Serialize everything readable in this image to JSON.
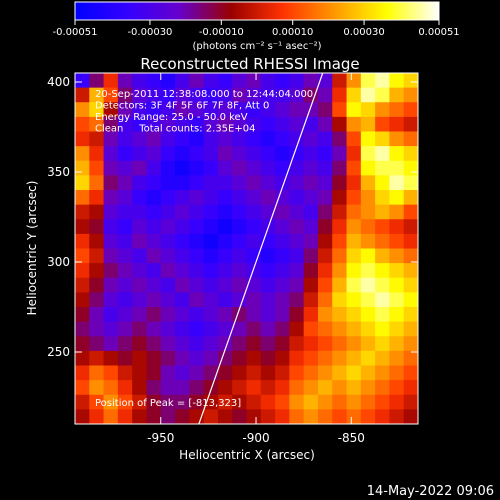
{
  "chart_data": {
    "type": "heatmap",
    "title": "Reconstructed RHESSI Image",
    "colorbar": {
      "tick_labels": [
        "-0.00051",
        "-0.00030",
        "-0.00010",
        "0.00010",
        "0.00030",
        "0.00051"
      ],
      "tick_values": [
        -0.00051,
        -0.0003,
        -0.0001,
        0.0001,
        0.0003,
        0.00051
      ],
      "range": [
        -0.00051,
        0.00051
      ],
      "unit_label": "(photons cm⁻² s⁻¹ asec⁻²)",
      "colormap": [
        "#0000ff",
        "#3300ff",
        "#6600cc",
        "#990000",
        "#ff3300",
        "#ff9900",
        "#ffff00",
        "#ffffff"
      ]
    },
    "xlabel": "Heliocentric X (arcsec)",
    "ylabel": "Heliocentric Y (arcsec)",
    "x_ticks": [
      -950,
      -900,
      -850
    ],
    "y_ticks": [
      250,
      300,
      350,
      400
    ],
    "xlim": [
      -995,
      -815
    ],
    "ylim": [
      210,
      405
    ],
    "annotations": [
      "20-Sep-2011 12:38:08.000 to 12:44:04.000",
      "Detectors: 3F 4F 5F 6F 7F 8F, Att 0",
      "Energy Range: 25.0 - 50.0 keV",
      "Clean     Total counts: 2.35E+04"
    ],
    "peak_label": "Position of Peak = [-813,323]",
    "limb_line": [
      [
        -930,
        210
      ],
      [
        -865,
        405
      ]
    ],
    "field_levels": {
      "rows": 24,
      "cols": 24,
      "values": [
        [
          0.15,
          0.35,
          0.55,
          0.3,
          0.2,
          0.15,
          0.1,
          0.2,
          0.3,
          0.2,
          0.15,
          0.25,
          0.3,
          0.2,
          0.15,
          0.2,
          0.3,
          0.25,
          0.5,
          0.7,
          0.9,
          0.95,
          0.85,
          0.8
        ],
        [
          0.5,
          0.75,
          0.6,
          0.35,
          0.25,
          0.2,
          0.15,
          0.25,
          0.2,
          0.15,
          0.2,
          0.3,
          0.25,
          0.2,
          0.2,
          0.25,
          0.35,
          0.3,
          0.55,
          0.8,
          0.95,
          0.9,
          0.75,
          0.7
        ],
        [
          0.7,
          0.8,
          0.45,
          0.3,
          0.2,
          0.15,
          0.2,
          0.3,
          0.25,
          0.2,
          0.25,
          0.2,
          0.15,
          0.2,
          0.25,
          0.3,
          0.3,
          0.35,
          0.6,
          0.85,
          0.8,
          0.7,
          0.65,
          0.6
        ],
        [
          0.6,
          0.65,
          0.35,
          0.2,
          0.15,
          0.2,
          0.25,
          0.2,
          0.15,
          0.25,
          0.3,
          0.25,
          0.2,
          0.15,
          0.2,
          0.25,
          0.2,
          0.3,
          0.45,
          0.7,
          0.75,
          0.6,
          0.55,
          0.5
        ],
        [
          0.55,
          0.5,
          0.3,
          0.2,
          0.25,
          0.3,
          0.2,
          0.15,
          0.1,
          0.2,
          0.25,
          0.2,
          0.15,
          0.1,
          0.15,
          0.2,
          0.25,
          0.2,
          0.35,
          0.6,
          0.85,
          0.8,
          0.7,
          0.65
        ],
        [
          0.7,
          0.55,
          0.25,
          0.15,
          0.2,
          0.25,
          0.15,
          0.1,
          0.15,
          0.2,
          0.3,
          0.25,
          0.2,
          0.15,
          0.1,
          0.15,
          0.2,
          0.15,
          0.3,
          0.55,
          0.9,
          0.95,
          0.85,
          0.8
        ],
        [
          0.75,
          0.6,
          0.3,
          0.25,
          0.3,
          0.2,
          0.1,
          0.05,
          0.1,
          0.15,
          0.25,
          0.3,
          0.25,
          0.2,
          0.15,
          0.2,
          0.25,
          0.2,
          0.35,
          0.6,
          0.85,
          0.9,
          0.9,
          0.85
        ],
        [
          0.8,
          0.65,
          0.35,
          0.3,
          0.2,
          0.15,
          0.1,
          0.1,
          0.15,
          0.2,
          0.2,
          0.25,
          0.3,
          0.25,
          0.2,
          0.25,
          0.3,
          0.25,
          0.4,
          0.55,
          0.75,
          0.85,
          0.95,
          0.9
        ],
        [
          0.65,
          0.55,
          0.3,
          0.25,
          0.15,
          0.1,
          0.15,
          0.2,
          0.25,
          0.2,
          0.15,
          0.2,
          0.25,
          0.3,
          0.25,
          0.2,
          0.25,
          0.3,
          0.45,
          0.6,
          0.7,
          0.8,
          0.85,
          0.75
        ],
        [
          0.5,
          0.45,
          0.25,
          0.2,
          0.2,
          0.15,
          0.2,
          0.25,
          0.2,
          0.15,
          0.1,
          0.15,
          0.2,
          0.25,
          0.3,
          0.25,
          0.2,
          0.35,
          0.5,
          0.65,
          0.7,
          0.75,
          0.7,
          0.6
        ],
        [
          0.45,
          0.4,
          0.2,
          0.15,
          0.25,
          0.2,
          0.25,
          0.2,
          0.15,
          0.1,
          0.05,
          0.1,
          0.15,
          0.2,
          0.25,
          0.3,
          0.25,
          0.4,
          0.55,
          0.7,
          0.65,
          0.6,
          0.55,
          0.5
        ],
        [
          0.55,
          0.45,
          0.25,
          0.2,
          0.3,
          0.25,
          0.2,
          0.15,
          0.1,
          0.05,
          0.1,
          0.15,
          0.2,
          0.15,
          0.2,
          0.25,
          0.3,
          0.45,
          0.6,
          0.75,
          0.7,
          0.65,
          0.6,
          0.55
        ],
        [
          0.6,
          0.5,
          0.3,
          0.25,
          0.2,
          0.3,
          0.25,
          0.2,
          0.15,
          0.1,
          0.15,
          0.2,
          0.15,
          0.1,
          0.15,
          0.2,
          0.35,
          0.5,
          0.65,
          0.8,
          0.85,
          0.75,
          0.7,
          0.65
        ],
        [
          0.55,
          0.45,
          0.35,
          0.3,
          0.25,
          0.2,
          0.3,
          0.25,
          0.2,
          0.15,
          0.2,
          0.25,
          0.2,
          0.15,
          0.2,
          0.25,
          0.4,
          0.55,
          0.7,
          0.85,
          0.9,
          0.85,
          0.8,
          0.75
        ],
        [
          0.5,
          0.4,
          0.3,
          0.25,
          0.3,
          0.25,
          0.2,
          0.3,
          0.25,
          0.2,
          0.25,
          0.3,
          0.25,
          0.2,
          0.25,
          0.3,
          0.45,
          0.6,
          0.75,
          0.9,
          0.95,
          0.9,
          0.85,
          0.8
        ],
        [
          0.45,
          0.35,
          0.25,
          0.2,
          0.25,
          0.3,
          0.25,
          0.2,
          0.3,
          0.25,
          0.2,
          0.25,
          0.3,
          0.25,
          0.3,
          0.35,
          0.5,
          0.65,
          0.8,
          0.85,
          0.9,
          0.95,
          0.9,
          0.85
        ],
        [
          0.4,
          0.3,
          0.2,
          0.25,
          0.3,
          0.35,
          0.3,
          0.25,
          0.2,
          0.25,
          0.3,
          0.35,
          0.3,
          0.25,
          0.3,
          0.4,
          0.55,
          0.7,
          0.75,
          0.8,
          0.85,
          0.9,
          0.85,
          0.8
        ],
        [
          0.35,
          0.3,
          0.25,
          0.3,
          0.35,
          0.3,
          0.25,
          0.2,
          0.15,
          0.2,
          0.25,
          0.3,
          0.35,
          0.3,
          0.35,
          0.45,
          0.6,
          0.65,
          0.7,
          0.75,
          0.8,
          0.85,
          0.8,
          0.75
        ],
        [
          0.4,
          0.35,
          0.3,
          0.35,
          0.4,
          0.35,
          0.3,
          0.25,
          0.2,
          0.25,
          0.3,
          0.35,
          0.4,
          0.35,
          0.4,
          0.5,
          0.55,
          0.6,
          0.65,
          0.7,
          0.75,
          0.8,
          0.75,
          0.7
        ],
        [
          0.45,
          0.5,
          0.45,
          0.4,
          0.45,
          0.4,
          0.35,
          0.3,
          0.25,
          0.3,
          0.35,
          0.4,
          0.45,
          0.4,
          0.45,
          0.55,
          0.6,
          0.65,
          0.7,
          0.75,
          0.8,
          0.75,
          0.7,
          0.65
        ],
        [
          0.55,
          0.65,
          0.6,
          0.5,
          0.45,
          0.4,
          0.3,
          0.25,
          0.3,
          0.35,
          0.4,
          0.45,
          0.5,
          0.45,
          0.5,
          0.6,
          0.65,
          0.7,
          0.75,
          0.8,
          0.75,
          0.7,
          0.65,
          0.6
        ],
        [
          0.6,
          0.7,
          0.65,
          0.55,
          0.45,
          0.35,
          0.3,
          0.3,
          0.35,
          0.4,
          0.45,
          0.5,
          0.55,
          0.5,
          0.55,
          0.65,
          0.7,
          0.75,
          0.7,
          0.75,
          0.7,
          0.65,
          0.6,
          0.55
        ],
        [
          0.5,
          0.6,
          0.7,
          0.6,
          0.5,
          0.4,
          0.35,
          0.35,
          0.4,
          0.45,
          0.5,
          0.45,
          0.5,
          0.55,
          0.6,
          0.7,
          0.75,
          0.7,
          0.65,
          0.7,
          0.65,
          0.6,
          0.55,
          0.5
        ],
        [
          0.45,
          0.55,
          0.65,
          0.55,
          0.45,
          0.4,
          0.35,
          0.4,
          0.45,
          0.5,
          0.45,
          0.4,
          0.45,
          0.5,
          0.55,
          0.65,
          0.7,
          0.65,
          0.6,
          0.65,
          0.6,
          0.55,
          0.5,
          0.45
        ]
      ]
    }
  },
  "footer": {
    "timestamp": "14-May-2022 09:06"
  }
}
